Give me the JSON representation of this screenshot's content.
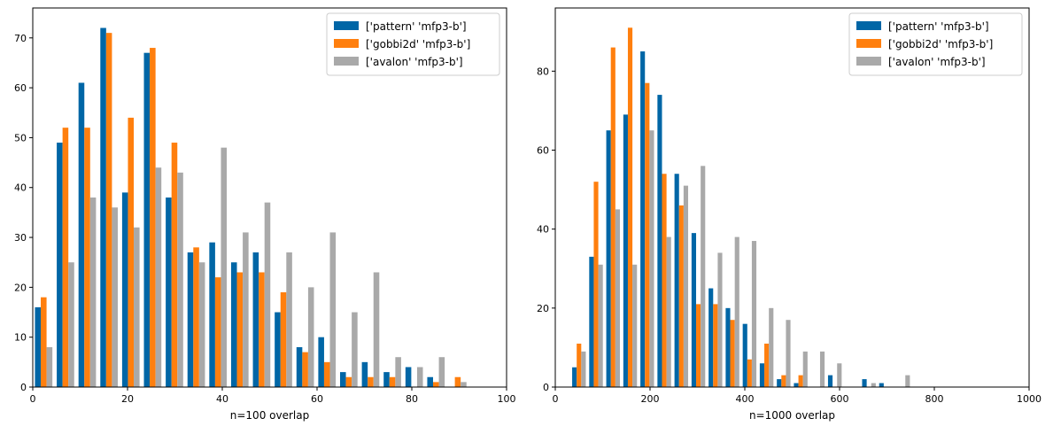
{
  "chart_data": [
    {
      "type": "bar",
      "title": "",
      "xlabel": "n=100 overlap",
      "ylabel": "",
      "xlim": [
        0,
        100
      ],
      "ylim": [
        0,
        76
      ],
      "xticks": [
        "0",
        "20",
        "40",
        "60",
        "80",
        "100"
      ],
      "yticks": [
        "0",
        "10",
        "20",
        "30",
        "40",
        "50",
        "60",
        "70"
      ],
      "legend_position": "top-right",
      "bin_edges": [
        0,
        4.6,
        9.2,
        13.8,
        18.4,
        23,
        27.6,
        32.2,
        36.8,
        41.4,
        46,
        50.6,
        55.2,
        59.8,
        64.4,
        69,
        73.6,
        78.2,
        82.8,
        87.4,
        92
      ],
      "series": [
        {
          "name": "['pattern' 'mfp3-b']",
          "color": "#0066a6",
          "values": [
            16,
            49,
            61,
            72,
            39,
            67,
            38,
            27,
            29,
            25,
            27,
            15,
            8,
            10,
            3,
            5,
            3,
            4,
            2,
            0
          ]
        },
        {
          "name": "['gobbi2d' 'mfp3-b']",
          "color": "#ff7f0e",
          "values": [
            18,
            52,
            52,
            71,
            54,
            68,
            49,
            28,
            22,
            23,
            23,
            19,
            7,
            5,
            2,
            2,
            2,
            0,
            1,
            2
          ]
        },
        {
          "name": "['avalon' 'mfp3-b']",
          "color": "#a9a9a9",
          "values": [
            8,
            25,
            38,
            36,
            32,
            44,
            43,
            25,
            48,
            31,
            37,
            27,
            20,
            31,
            15,
            23,
            6,
            4,
            6,
            1
          ]
        }
      ]
    },
    {
      "type": "bar",
      "title": "",
      "xlabel": "n=1000 overlap",
      "ylabel": "",
      "xlim": [
        0,
        1000
      ],
      "ylim": [
        0,
        96
      ],
      "xticks": [
        "0",
        "200",
        "400",
        "600",
        "800",
        "1000"
      ],
      "yticks": [
        "0",
        "20",
        "40",
        "60",
        "80"
      ],
      "legend_position": "top-right",
      "bin_edges": [
        32,
        68,
        104,
        140,
        176,
        212,
        248,
        284,
        320,
        356,
        392,
        428,
        464,
        500,
        536,
        572,
        608,
        644,
        680,
        716,
        752
      ],
      "series": [
        {
          "name": "['pattern' 'mfp3-b']",
          "color": "#0066a6",
          "values": [
            5,
            33,
            65,
            69,
            85,
            74,
            54,
            39,
            25,
            20,
            16,
            6,
            2,
            1,
            0,
            3,
            0,
            2,
            1,
            0
          ]
        },
        {
          "name": "['gobbi2d' 'mfp3-b']",
          "color": "#ff7f0e",
          "values": [
            11,
            52,
            86,
            91,
            77,
            54,
            46,
            21,
            21,
            17,
            7,
            11,
            3,
            3,
            0,
            0,
            0,
            0,
            0,
            0
          ]
        },
        {
          "name": "['avalon' 'mfp3-b']",
          "color": "#a9a9a9",
          "values": [
            9,
            31,
            45,
            31,
            65,
            38,
            51,
            56,
            34,
            38,
            37,
            20,
            17,
            9,
            9,
            6,
            0,
            1,
            0,
            3
          ]
        }
      ]
    }
  ]
}
